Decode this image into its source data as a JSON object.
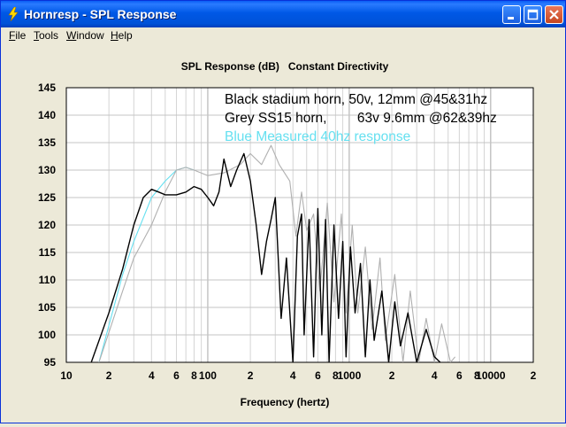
{
  "window": {
    "title": "Hornresp - SPL Response"
  },
  "menu": [
    {
      "label": "File",
      "accel": "F",
      "rest": "ile"
    },
    {
      "label": "Tools",
      "accel": "T",
      "rest": "ools"
    },
    {
      "label": "Window",
      "accel": "W",
      "rest": "indow"
    },
    {
      "label": "Help",
      "accel": "H",
      "rest": "elp"
    }
  ],
  "colors": {
    "plot_bg": "#ffffff",
    "black_series": "#000000",
    "grey_series": "#b0b0b0",
    "blue_series": "#66e0f0"
  },
  "chart_data": {
    "type": "line",
    "title": "SPL Response (dB)   Constant Directivity",
    "xlabel": "Frequency (hertz)",
    "ylabel": "",
    "x_scale": "log",
    "xlim": [
      10,
      20000
    ],
    "ylim": [
      95,
      145
    ],
    "y_ticks": [
      95,
      100,
      105,
      110,
      115,
      120,
      125,
      130,
      135,
      140,
      145
    ],
    "x_ticks": [
      {
        "v": 10,
        "label": "10"
      },
      {
        "v": 20,
        "label": "2"
      },
      {
        "v": 40,
        "label": "4"
      },
      {
        "v": 60,
        "label": "6"
      },
      {
        "v": 80,
        "label": "8"
      },
      {
        "v": 100,
        "label": "100"
      },
      {
        "v": 200,
        "label": "2"
      },
      {
        "v": 400,
        "label": "4"
      },
      {
        "v": 600,
        "label": "6"
      },
      {
        "v": 800,
        "label": "8"
      },
      {
        "v": 1000,
        "label": "1000"
      },
      {
        "v": 2000,
        "label": "2"
      },
      {
        "v": 4000,
        "label": "4"
      },
      {
        "v": 6000,
        "label": "6"
      },
      {
        "v": 8000,
        "label": "8"
      },
      {
        "v": 10000,
        "label": "10000"
      },
      {
        "v": 20000,
        "label": "2"
      }
    ],
    "grid": true,
    "annotations": [
      {
        "text": "Black stadium horn, 50v, 12mm @45&31hz",
        "color": "#000000"
      },
      {
        "text": "Grey SS15 horn,        63v 9.6mm @62&39hz",
        "color": "#000000"
      },
      {
        "text": "Blue Measured 40hz response",
        "color": "#66e0f0"
      }
    ],
    "series": [
      {
        "color": "#66e0f0",
        "points": [
          [
            17,
            95
          ],
          [
            25,
            111
          ],
          [
            30,
            117
          ],
          [
            40,
            125
          ],
          [
            50,
            128
          ],
          [
            60,
            130
          ],
          [
            70,
            130.5
          ],
          [
            80,
            130
          ]
        ]
      },
      {
        "color": "#b0b0b0",
        "points": [
          [
            17,
            95
          ],
          [
            25,
            108
          ],
          [
            30,
            114
          ],
          [
            40,
            120
          ],
          [
            50,
            126
          ],
          [
            60,
            130
          ],
          [
            70,
            130.5
          ],
          [
            80,
            130
          ],
          [
            100,
            129
          ],
          [
            130,
            129.5
          ],
          [
            170,
            131
          ],
          [
            200,
            133
          ],
          [
            240,
            131
          ],
          [
            280,
            134.5
          ],
          [
            320,
            131
          ],
          [
            380,
            128
          ],
          [
            420,
            118
          ],
          [
            460,
            126
          ],
          [
            500,
            119
          ],
          [
            560,
            122
          ],
          [
            620,
            108
          ],
          [
            700,
            124
          ],
          [
            780,
            106
          ],
          [
            880,
            122
          ],
          [
            950,
            104
          ],
          [
            1050,
            120
          ],
          [
            1150,
            104
          ],
          [
            1300,
            116
          ],
          [
            1450,
            101
          ],
          [
            1650,
            114
          ],
          [
            1800,
            99
          ],
          [
            2100,
            111
          ],
          [
            2400,
            95
          ],
          [
            2700,
            108
          ],
          [
            3100,
            95
          ],
          [
            3500,
            103
          ],
          [
            4000,
            95
          ],
          [
            4500,
            102
          ],
          [
            5200,
            95
          ],
          [
            5600,
            96
          ]
        ]
      },
      {
        "color": "#000000",
        "points": [
          [
            15,
            95
          ],
          [
            20,
            104
          ],
          [
            25,
            112
          ],
          [
            30,
            120
          ],
          [
            35,
            125
          ],
          [
            40,
            126.5
          ],
          [
            45,
            126
          ],
          [
            50,
            125.5
          ],
          [
            60,
            125.5
          ],
          [
            70,
            126
          ],
          [
            80,
            127
          ],
          [
            90,
            126.5
          ],
          [
            100,
            125
          ],
          [
            110,
            123.5
          ],
          [
            120,
            126
          ],
          [
            130,
            132
          ],
          [
            145,
            127
          ],
          [
            160,
            130
          ],
          [
            180,
            133
          ],
          [
            200,
            128
          ],
          [
            220,
            120
          ],
          [
            240,
            111
          ],
          [
            260,
            117
          ],
          [
            280,
            121
          ],
          [
            300,
            125
          ],
          [
            330,
            103
          ],
          [
            360,
            114
          ],
          [
            400,
            95
          ],
          [
            430,
            118
          ],
          [
            460,
            122
          ],
          [
            480,
            100
          ],
          [
            520,
            121
          ],
          [
            560,
            96
          ],
          [
            600,
            123
          ],
          [
            640,
            100
          ],
          [
            680,
            121
          ],
          [
            720,
            95
          ],
          [
            780,
            120
          ],
          [
            840,
            103
          ],
          [
            900,
            117
          ],
          [
            950,
            96
          ],
          [
            1020,
            116
          ],
          [
            1100,
            104
          ],
          [
            1200,
            113
          ],
          [
            1300,
            96
          ],
          [
            1400,
            110
          ],
          [
            1500,
            99
          ],
          [
            1700,
            108
          ],
          [
            1900,
            95
          ],
          [
            2100,
            106
          ],
          [
            2300,
            98
          ],
          [
            2600,
            104
          ],
          [
            3000,
            95
          ],
          [
            3500,
            101
          ],
          [
            4000,
            96
          ],
          [
            4400,
            95
          ]
        ]
      }
    ]
  }
}
